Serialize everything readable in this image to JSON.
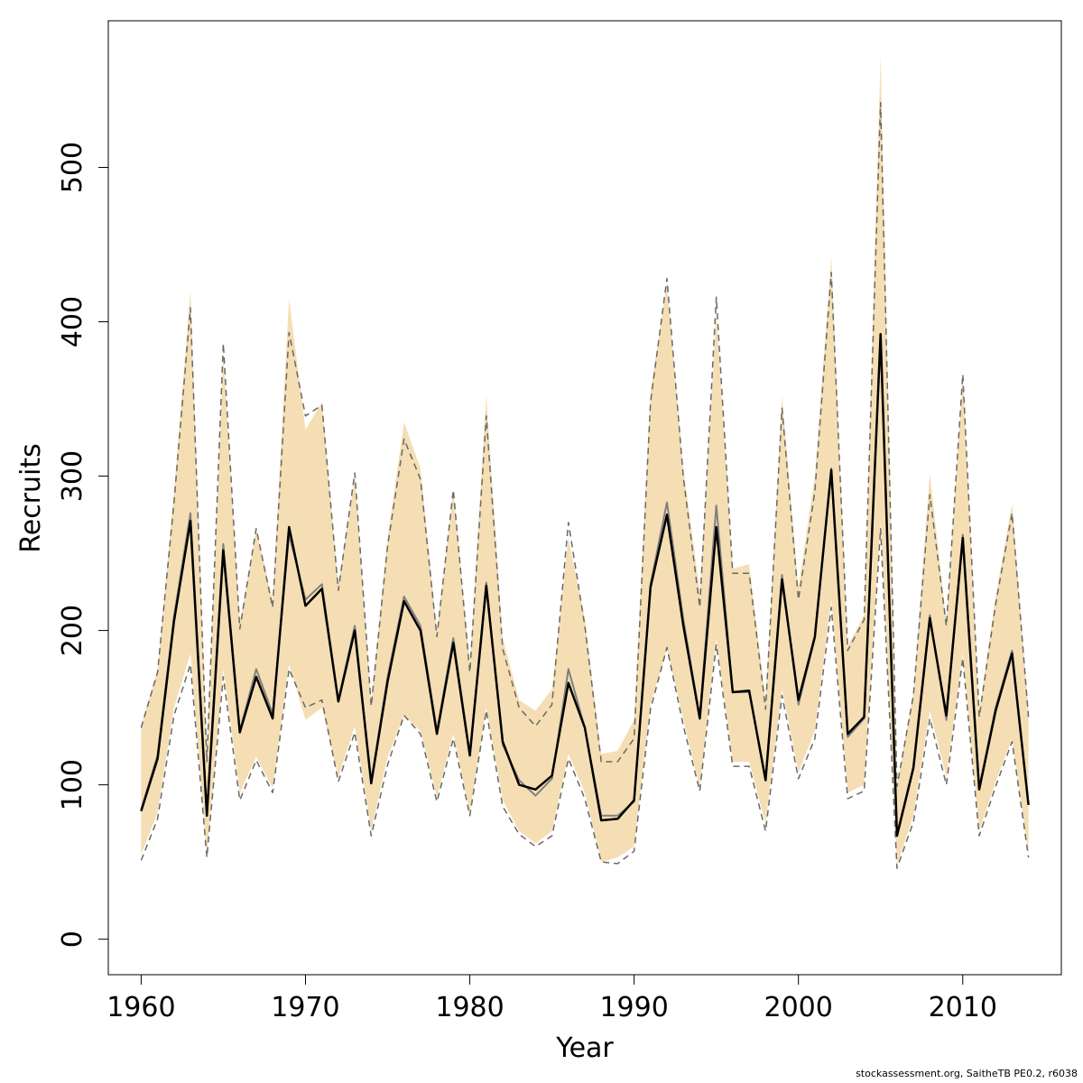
{
  "chart_data": {
    "type": "line",
    "title": "",
    "xlabel": "Year",
    "ylabel": "Recruits",
    "xlim": [
      1958,
      2016
    ],
    "ylim": [
      -23,
      595
    ],
    "xticks": [
      1960,
      1970,
      1980,
      1990,
      2000,
      2010
    ],
    "yticks": [
      0,
      100,
      200,
      300,
      400,
      500
    ],
    "grid": false,
    "legend": "none",
    "colors": {
      "band": "#f5deb3",
      "main_line": "#000000",
      "alt_line": "#808080",
      "ci_line": "#696969"
    },
    "x": [
      1960,
      1961,
      1962,
      1963,
      1964,
      1965,
      1966,
      1967,
      1968,
      1969,
      1970,
      1971,
      1972,
      1973,
      1974,
      1975,
      1976,
      1977,
      1978,
      1979,
      1980,
      1981,
      1982,
      1983,
      1984,
      1985,
      1986,
      1987,
      1988,
      1989,
      1990,
      1991,
      1992,
      1993,
      1994,
      1995,
      1996,
      1997,
      1998,
      1999,
      2000,
      2001,
      2002,
      2003,
      2004,
      2005,
      2006,
      2007,
      2008,
      2009,
      2010,
      2011,
      2012,
      2013,
      2014
    ],
    "series": [
      {
        "values": [
          83,
          117,
          206,
          271,
          80,
          252,
          134,
          170,
          143,
          267,
          216,
          227,
          154,
          200,
          101,
          167,
          219,
          200,
          133,
          192,
          119,
          229,
          128,
          100,
          97,
          106,
          166,
          137,
          77,
          78,
          90,
          228,
          275,
          203,
          143,
          267,
          160,
          161,
          103,
          233,
          155,
          196,
          304,
          133,
          144,
          392,
          67,
          111,
          208,
          145,
          260,
          97,
          148,
          185,
          87
        ]
      },
      {
        "values": [
          84,
          119,
          209,
          276,
          82,
          256,
          135,
          175,
          146,
          262,
          220,
          230,
          155,
          203,
          102,
          170,
          222,
          203,
          135,
          195,
          120,
          231,
          126,
          103,
          93,
          104,
          175,
          137,
          80,
          80,
          89,
          230,
          283,
          207,
          144,
          281,
          160,
          160,
          104,
          236,
          152,
          195,
          305,
          131,
          143,
          390,
          68,
          112,
          210,
          142,
          262,
          98,
          150,
          187,
          87
        ]
      },
      {
        "values": [
          137,
          173,
          283,
          409,
          115,
          386,
          201,
          266,
          215,
          393,
          339,
          346,
          226,
          302,
          151,
          255,
          324,
          298,
          196,
          291,
          173,
          339,
          188,
          150,
          138,
          152,
          270,
          203,
          115,
          115,
          130,
          348,
          428,
          299,
          215,
          416,
          237,
          237,
          149,
          344,
          220,
          290,
          432,
          187,
          207,
          542,
          99,
          158,
          288,
          203,
          366,
          144,
          217,
          276,
          144
        ]
      },
      {
        "values": [
          51,
          78,
          145,
          178,
          53,
          170,
          90,
          116,
          95,
          175,
          150,
          155,
          102,
          134,
          67,
          113,
          145,
          133,
          89,
          130,
          80,
          148,
          86,
          68,
          60,
          67,
          117,
          91,
          50,
          49,
          57,
          149,
          189,
          138,
          96,
          191,
          112,
          112,
          70,
          158,
          104,
          130,
          215,
          91,
          96,
          266,
          46,
          76,
          143,
          100,
          182,
          67,
          99,
          128,
          53
        ]
      },
      {
        "values": [
          138,
          175,
          290,
          420,
          120,
          380,
          205,
          265,
          220,
          415,
          330,
          348,
          230,
          300,
          155,
          260,
          335,
          305,
          200,
          290,
          178,
          352,
          195,
          155,
          148,
          162,
          260,
          208,
          120,
          122,
          142,
          355,
          425,
          305,
          225,
          405,
          240,
          243,
          155,
          352,
          228,
          300,
          442,
          190,
          210,
          572,
          100,
          160,
          302,
          205,
          365,
          148,
          222,
          282,
          148
        ]
      },
      {
        "values": [
          55,
          82,
          150,
          185,
          55,
          175,
          95,
          118,
          98,
          178,
          142,
          150,
          105,
          138,
          70,
          118,
          145,
          135,
          92,
          133,
          82,
          150,
          90,
          70,
          62,
          70,
          120,
          95,
          50,
          53,
          60,
          152,
          188,
          142,
          98,
          195,
          115,
          115,
          75,
          162,
          108,
          135,
          220,
          95,
          100,
          270,
          48,
          80,
          148,
          105,
          185,
          70,
          102,
          130,
          55
        ]
      }
    ]
  },
  "footer": "stockassessment.org, SaitheTB  PE0.2, r6038"
}
